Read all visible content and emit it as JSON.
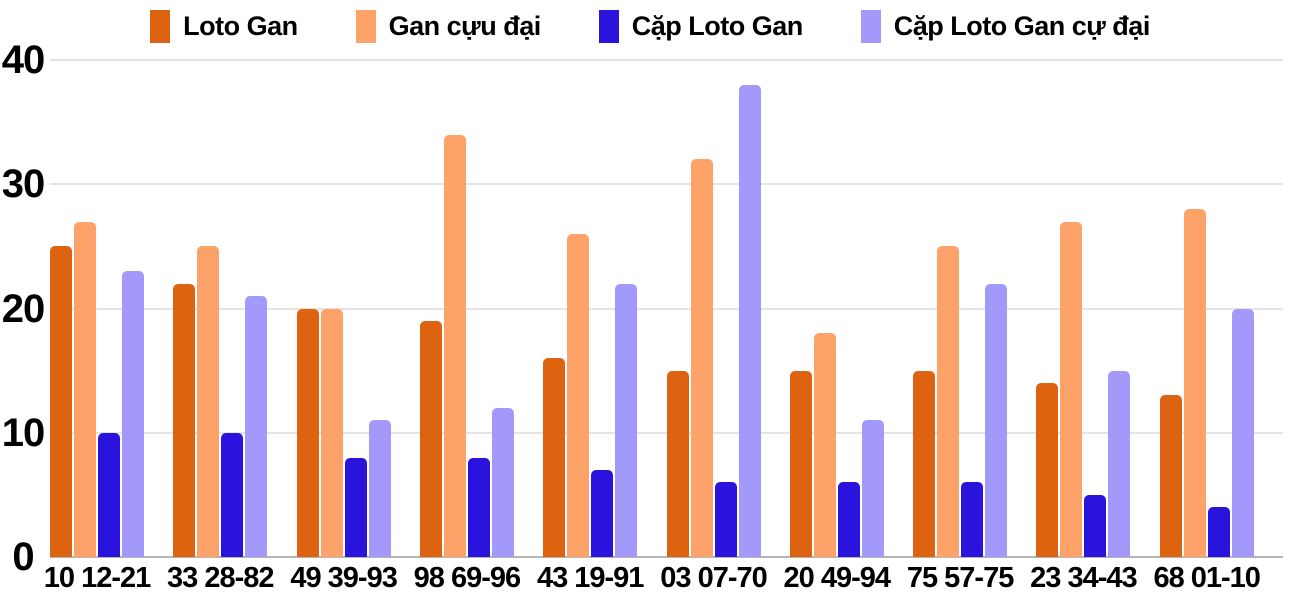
{
  "chart_data": {
    "type": "bar",
    "title": "",
    "xlabel": "",
    "ylabel": "",
    "categories": [
      "10 12-21",
      "33 28-82",
      "49 39-93",
      "98 69-96",
      "43 19-91",
      "03 07-70",
      "20 49-94",
      "75 57-75",
      "23 34-43",
      "68 01-10"
    ],
    "series": [
      {
        "name": "Loto Gan",
        "color": "#DE6311",
        "values": [
          25,
          22,
          20,
          19,
          16,
          15,
          15,
          15,
          14,
          13
        ]
      },
      {
        "name": "Gan cựu đại",
        "color": "#FDA36A",
        "values": [
          27,
          25,
          20,
          34,
          26,
          32,
          18,
          25,
          27,
          28
        ]
      },
      {
        "name": "Cặp Loto Gan",
        "color": "#2A13DD",
        "values": [
          10,
          10,
          8,
          8,
          7,
          6,
          6,
          6,
          5,
          4
        ]
      },
      {
        "name": "Cặp Loto Gan cự đại",
        "color": "#A299FB",
        "values": [
          23,
          21,
          11,
          12,
          22,
          38,
          11,
          22,
          15,
          20
        ]
      }
    ],
    "ylim": [
      0,
      40
    ],
    "yticks": [
      0,
      10,
      20,
      30,
      40
    ],
    "grid": true,
    "legend_position": "top"
  },
  "colors": {
    "background": "#ffffff",
    "gridline": "#e4e4e4",
    "baseline": "#b5b5b5",
    "text": "#000000"
  }
}
